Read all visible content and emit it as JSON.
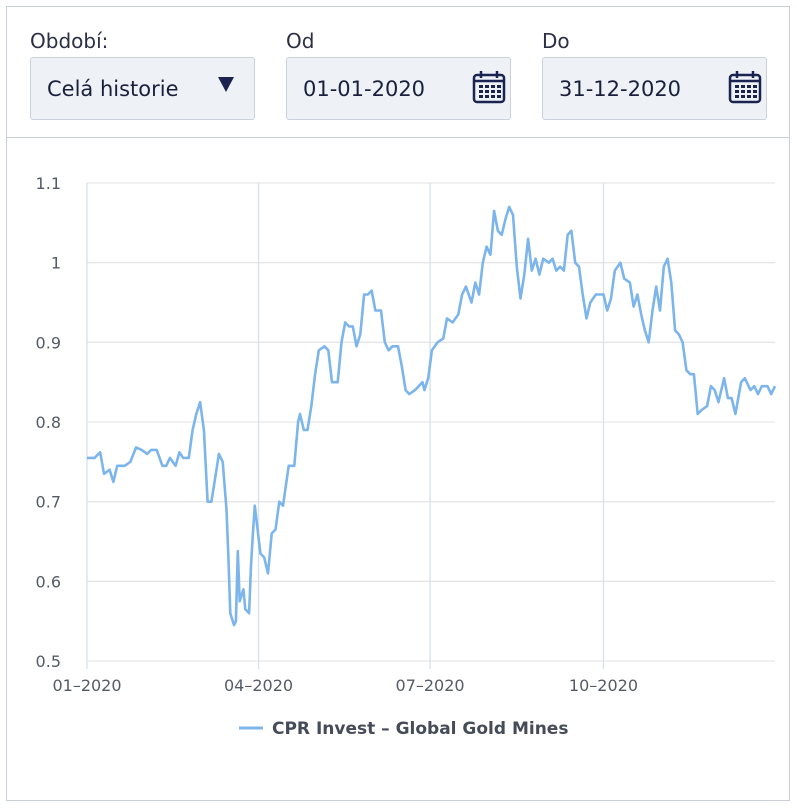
{
  "filters": {
    "period": {
      "label": "Období:",
      "value": "Celá historie",
      "icon": "caret-down-icon"
    },
    "from": {
      "label": "Od",
      "value": "01-01-2020",
      "icon": "calendar-icon"
    },
    "to": {
      "label": "Do",
      "value": "31-12-2020",
      "icon": "calendar-icon"
    }
  },
  "colors": {
    "line": "#7cb5ec",
    "grid": "#e6e6e6",
    "accent": "#1b2350"
  },
  "chart_data": {
    "type": "line",
    "title": "",
    "xlabel": "",
    "ylabel": "",
    "x_range": [
      "2020-01-01",
      "2020-12-31"
    ],
    "ylim": [
      0.5,
      1.1
    ],
    "y_ticks": [
      "0.5",
      "0.6",
      "0.7",
      "0.8",
      "0.9",
      "1",
      "1.1"
    ],
    "x_ticks": [
      {
        "date": "2020-01-01",
        "label": "01–2020"
      },
      {
        "date": "2020-04-01",
        "label": "04–2020"
      },
      {
        "date": "2020-07-01",
        "label": "07–2020"
      },
      {
        "date": "2020-10-01",
        "label": "10–2020"
      }
    ],
    "grid": true,
    "legend_position": "bottom-center",
    "series": [
      {
        "name": "CPR Invest – Global Gold Mines",
        "points": [
          [
            "2020-01-01",
            0.755
          ],
          [
            "2020-01-05",
            0.755
          ],
          [
            "2020-01-08",
            0.762
          ],
          [
            "2020-01-10",
            0.735
          ],
          [
            "2020-01-13",
            0.74
          ],
          [
            "2020-01-15",
            0.725
          ],
          [
            "2020-01-17",
            0.745
          ],
          [
            "2020-01-21",
            0.745
          ],
          [
            "2020-01-24",
            0.75
          ],
          [
            "2020-01-27",
            0.768
          ],
          [
            "2020-01-30",
            0.765
          ],
          [
            "2020-02-02",
            0.76
          ],
          [
            "2020-02-04",
            0.765
          ],
          [
            "2020-02-07",
            0.765
          ],
          [
            "2020-02-10",
            0.745
          ],
          [
            "2020-02-12",
            0.745
          ],
          [
            "2020-02-14",
            0.755
          ],
          [
            "2020-02-17",
            0.745
          ],
          [
            "2020-02-19",
            0.762
          ],
          [
            "2020-02-21",
            0.755
          ],
          [
            "2020-02-24",
            0.755
          ],
          [
            "2020-02-26",
            0.79
          ],
          [
            "2020-02-28",
            0.81
          ],
          [
            "2020-03-01",
            0.825
          ],
          [
            "2020-03-03",
            0.79
          ],
          [
            "2020-03-05",
            0.7
          ],
          [
            "2020-03-07",
            0.7
          ],
          [
            "2020-03-09",
            0.73
          ],
          [
            "2020-03-11",
            0.76
          ],
          [
            "2020-03-13",
            0.75
          ],
          [
            "2020-03-15",
            0.69
          ],
          [
            "2020-03-16",
            0.63
          ],
          [
            "2020-03-17",
            0.56
          ],
          [
            "2020-03-19",
            0.545
          ],
          [
            "2020-03-20",
            0.55
          ],
          [
            "2020-03-21",
            0.638
          ],
          [
            "2020-03-22",
            0.575
          ],
          [
            "2020-03-24",
            0.59
          ],
          [
            "2020-03-25",
            0.565
          ],
          [
            "2020-03-27",
            0.56
          ],
          [
            "2020-03-28",
            0.62
          ],
          [
            "2020-03-29",
            0.66
          ],
          [
            "2020-03-30",
            0.695
          ],
          [
            "2020-04-02",
            0.635
          ],
          [
            "2020-04-04",
            0.63
          ],
          [
            "2020-04-06",
            0.61
          ],
          [
            "2020-04-08",
            0.66
          ],
          [
            "2020-04-10",
            0.665
          ],
          [
            "2020-04-12",
            0.7
          ],
          [
            "2020-04-14",
            0.695
          ],
          [
            "2020-04-17",
            0.745
          ],
          [
            "2020-04-20",
            0.745
          ],
          [
            "2020-04-22",
            0.8
          ],
          [
            "2020-04-23",
            0.81
          ],
          [
            "2020-04-25",
            0.79
          ],
          [
            "2020-04-27",
            0.79
          ],
          [
            "2020-04-29",
            0.82
          ],
          [
            "2020-05-01",
            0.86
          ],
          [
            "2020-05-03",
            0.89
          ],
          [
            "2020-05-06",
            0.895
          ],
          [
            "2020-05-08",
            0.89
          ],
          [
            "2020-05-10",
            0.85
          ],
          [
            "2020-05-13",
            0.85
          ],
          [
            "2020-05-15",
            0.9
          ],
          [
            "2020-05-17",
            0.925
          ],
          [
            "2020-05-19",
            0.92
          ],
          [
            "2020-05-21",
            0.92
          ],
          [
            "2020-05-23",
            0.895
          ],
          [
            "2020-05-25",
            0.91
          ],
          [
            "2020-05-27",
            0.96
          ],
          [
            "2020-05-29",
            0.96
          ],
          [
            "2020-05-31",
            0.965
          ],
          [
            "2020-06-02",
            0.94
          ],
          [
            "2020-06-05",
            0.94
          ],
          [
            "2020-06-07",
            0.9
          ],
          [
            "2020-06-09",
            0.89
          ],
          [
            "2020-06-11",
            0.895
          ],
          [
            "2020-06-14",
            0.895
          ],
          [
            "2020-06-16",
            0.87
          ],
          [
            "2020-06-18",
            0.84
          ],
          [
            "2020-06-20",
            0.835
          ],
          [
            "2020-06-23",
            0.84
          ],
          [
            "2020-06-25",
            0.845
          ],
          [
            "2020-06-27",
            0.85
          ],
          [
            "2020-06-28",
            0.84
          ],
          [
            "2020-06-30",
            0.855
          ],
          [
            "2020-07-02",
            0.89
          ],
          [
            "2020-07-05",
            0.9
          ],
          [
            "2020-07-08",
            0.905
          ],
          [
            "2020-07-10",
            0.93
          ],
          [
            "2020-07-13",
            0.925
          ],
          [
            "2020-07-16",
            0.935
          ],
          [
            "2020-07-18",
            0.96
          ],
          [
            "2020-07-20",
            0.97
          ],
          [
            "2020-07-23",
            0.95
          ],
          [
            "2020-07-25",
            0.975
          ],
          [
            "2020-07-27",
            0.96
          ],
          [
            "2020-07-29",
            1.0
          ],
          [
            "2020-07-31",
            1.02
          ],
          [
            "2020-08-02",
            1.01
          ],
          [
            "2020-08-04",
            1.065
          ],
          [
            "2020-08-06",
            1.04
          ],
          [
            "2020-08-08",
            1.035
          ],
          [
            "2020-08-10",
            1.055
          ],
          [
            "2020-08-12",
            1.07
          ],
          [
            "2020-08-14",
            1.06
          ],
          [
            "2020-08-16",
            0.995
          ],
          [
            "2020-08-18",
            0.955
          ],
          [
            "2020-08-20",
            0.985
          ],
          [
            "2020-08-22",
            1.03
          ],
          [
            "2020-08-24",
            0.99
          ],
          [
            "2020-08-26",
            1.005
          ],
          [
            "2020-08-28",
            0.985
          ],
          [
            "2020-08-30",
            1.005
          ],
          [
            "2020-09-02",
            1.0
          ],
          [
            "2020-09-04",
            1.005
          ],
          [
            "2020-09-06",
            0.99
          ],
          [
            "2020-09-08",
            0.995
          ],
          [
            "2020-09-10",
            0.99
          ],
          [
            "2020-09-12",
            1.035
          ],
          [
            "2020-09-14",
            1.04
          ],
          [
            "2020-09-16",
            1.0
          ],
          [
            "2020-09-18",
            0.995
          ],
          [
            "2020-09-20",
            0.96
          ],
          [
            "2020-09-22",
            0.93
          ],
          [
            "2020-09-24",
            0.95
          ],
          [
            "2020-09-27",
            0.96
          ],
          [
            "2020-09-29",
            0.96
          ],
          [
            "2020-10-01",
            0.96
          ],
          [
            "2020-10-03",
            0.94
          ],
          [
            "2020-10-05",
            0.955
          ],
          [
            "2020-10-07",
            0.99
          ],
          [
            "2020-10-10",
            1.0
          ],
          [
            "2020-10-12",
            0.98
          ],
          [
            "2020-10-15",
            0.975
          ],
          [
            "2020-10-17",
            0.945
          ],
          [
            "2020-10-19",
            0.96
          ],
          [
            "2020-10-21",
            0.935
          ],
          [
            "2020-10-23",
            0.915
          ],
          [
            "2020-10-25",
            0.9
          ],
          [
            "2020-10-27",
            0.94
          ],
          [
            "2020-10-29",
            0.97
          ],
          [
            "2020-10-31",
            0.94
          ],
          [
            "2020-11-02",
            0.995
          ],
          [
            "2020-11-04",
            1.005
          ],
          [
            "2020-11-06",
            0.975
          ],
          [
            "2020-11-08",
            0.915
          ],
          [
            "2020-11-10",
            0.91
          ],
          [
            "2020-11-12",
            0.9
          ],
          [
            "2020-11-14",
            0.865
          ],
          [
            "2020-11-16",
            0.86
          ],
          [
            "2020-11-18",
            0.86
          ],
          [
            "2020-11-20",
            0.81
          ],
          [
            "2020-11-22",
            0.815
          ],
          [
            "2020-11-25",
            0.82
          ],
          [
            "2020-11-27",
            0.845
          ],
          [
            "2020-11-29",
            0.84
          ],
          [
            "2020-12-01",
            0.825
          ],
          [
            "2020-12-04",
            0.855
          ],
          [
            "2020-12-06",
            0.83
          ],
          [
            "2020-12-08",
            0.83
          ],
          [
            "2020-12-10",
            0.81
          ],
          [
            "2020-12-13",
            0.85
          ],
          [
            "2020-12-15",
            0.855
          ],
          [
            "2020-12-18",
            0.84
          ],
          [
            "2020-12-20",
            0.845
          ],
          [
            "2020-12-22",
            0.835
          ],
          [
            "2020-12-24",
            0.845
          ],
          [
            "2020-12-27",
            0.845
          ],
          [
            "2020-12-29",
            0.835
          ],
          [
            "2020-12-31",
            0.845
          ]
        ]
      }
    ]
  }
}
